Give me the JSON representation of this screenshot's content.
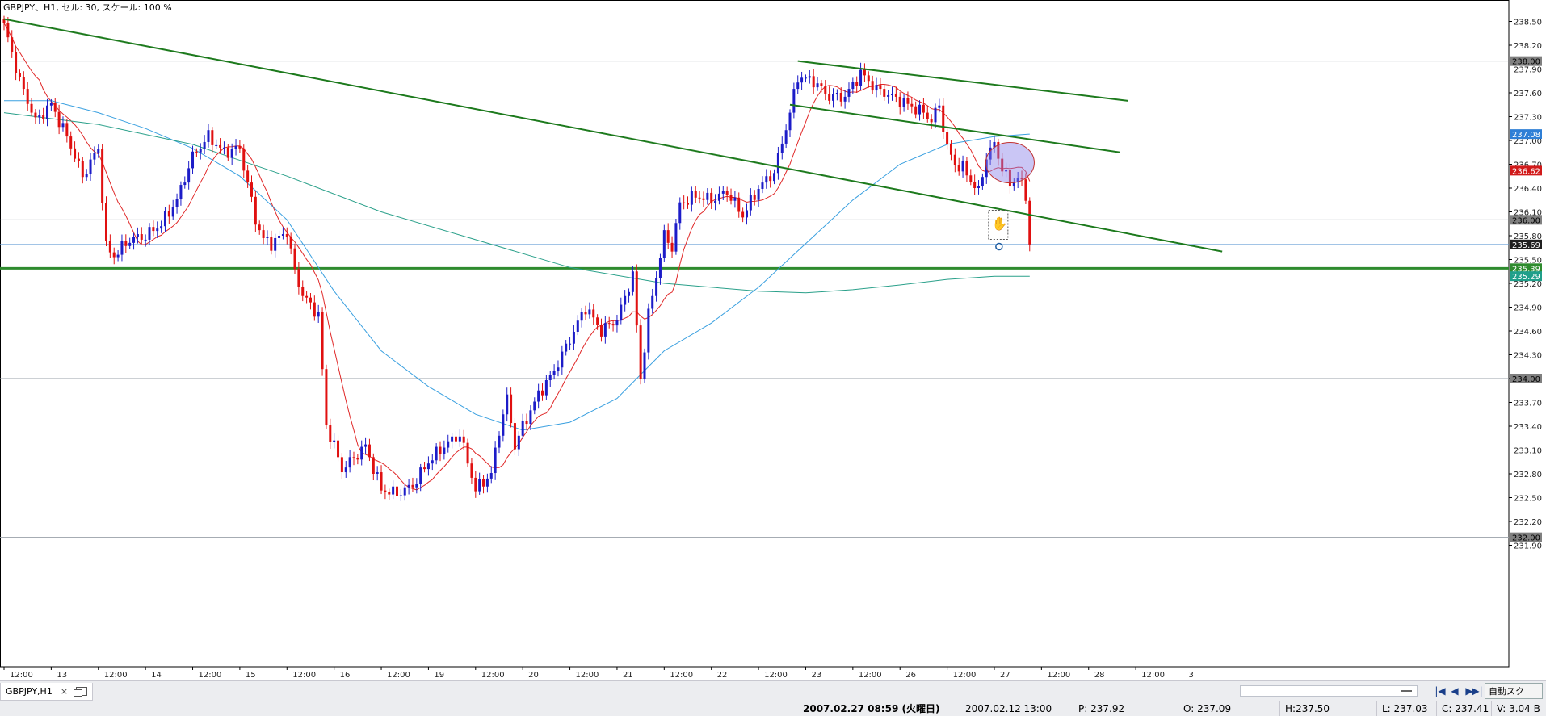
{
  "window": {
    "title_label": "GBPJPY、H1, セル: 30, スケール: 100 %"
  },
  "chart_data": {
    "type": "candlestick",
    "symbol": "GBPJPY",
    "timeframe": "H1",
    "title": "GBPJPY、H1, セル: 30, スケール: 100 %",
    "ylim": [
      232.0,
      238.6
    ],
    "y_ticks": [
      "238.50",
      "238.20",
      "237.90",
      "237.60",
      "237.30",
      "237.00",
      "236.70",
      "236.40",
      "236.10",
      "235.80",
      "235.50",
      "235.20",
      "234.90",
      "234.60",
      "234.30",
      "234.00",
      "233.70",
      "233.40",
      "233.10",
      "232.80",
      "232.50",
      "232.20",
      "231.90"
    ],
    "x_ticks": [
      {
        "label": "12:00",
        "bar": 0
      },
      {
        "label": "13",
        "bar": 12
      },
      {
        "label": "12:00",
        "bar": 24
      },
      {
        "label": "14",
        "bar": 36
      },
      {
        "label": "12:00",
        "bar": 48
      },
      {
        "label": "15",
        "bar": 60
      },
      {
        "label": "12:00",
        "bar": 72
      },
      {
        "label": "16",
        "bar": 84
      },
      {
        "label": "12:00",
        "bar": 96
      },
      {
        "label": "19",
        "bar": 108
      },
      {
        "label": "12:00",
        "bar": 120
      },
      {
        "label": "20",
        "bar": 132
      },
      {
        "label": "12:00",
        "bar": 144
      },
      {
        "label": "21",
        "bar": 156
      },
      {
        "label": "12:00",
        "bar": 168
      },
      {
        "label": "22",
        "bar": 180
      },
      {
        "label": "12:00",
        "bar": 192
      },
      {
        "label": "23",
        "bar": 204
      },
      {
        "label": "12:00",
        "bar": 216
      },
      {
        "label": "26",
        "bar": 228
      },
      {
        "label": "12:00",
        "bar": 240
      },
      {
        "label": "27",
        "bar": 252
      },
      {
        "label": "12:00",
        "bar": 264
      },
      {
        "label": "28",
        "bar": 276
      },
      {
        "label": "12:00",
        "bar": 288
      },
      {
        "label": "3",
        "bar": 300
      }
    ],
    "anchors": [
      [
        0,
        238.45
      ],
      [
        4,
        237.75
      ],
      [
        8,
        237.25
      ],
      [
        12,
        237.45
      ],
      [
        16,
        237.05
      ],
      [
        20,
        236.55
      ],
      [
        24,
        236.9
      ],
      [
        26,
        235.65
      ],
      [
        28,
        235.55
      ],
      [
        32,
        235.75
      ],
      [
        36,
        235.8
      ],
      [
        40,
        235.95
      ],
      [
        44,
        236.25
      ],
      [
        48,
        236.8
      ],
      [
        52,
        237.05
      ],
      [
        56,
        236.85
      ],
      [
        60,
        236.9
      ],
      [
        64,
        236.0
      ],
      [
        66,
        235.75
      ],
      [
        68,
        235.7
      ],
      [
        72,
        235.85
      ],
      [
        74,
        235.35
      ],
      [
        76,
        235.05
      ],
      [
        80,
        234.8
      ],
      [
        82,
        233.4
      ],
      [
        84,
        233.15
      ],
      [
        86,
        232.85
      ],
      [
        88,
        232.95
      ],
      [
        92,
        233.15
      ],
      [
        96,
        232.6
      ],
      [
        100,
        232.55
      ],
      [
        104,
        232.65
      ],
      [
        108,
        232.95
      ],
      [
        112,
        233.15
      ],
      [
        116,
        233.3
      ],
      [
        120,
        232.6
      ],
      [
        124,
        232.8
      ],
      [
        126,
        233.35
      ],
      [
        128,
        233.75
      ],
      [
        130,
        233.15
      ],
      [
        132,
        233.4
      ],
      [
        136,
        233.8
      ],
      [
        140,
        234.1
      ],
      [
        144,
        234.5
      ],
      [
        148,
        234.9
      ],
      [
        152,
        234.6
      ],
      [
        156,
        234.75
      ],
      [
        160,
        235.3
      ],
      [
        162,
        234.0
      ],
      [
        164,
        234.8
      ],
      [
        168,
        235.8
      ],
      [
        170,
        235.65
      ],
      [
        172,
        236.2
      ],
      [
        176,
        236.3
      ],
      [
        180,
        236.25
      ],
      [
        184,
        236.35
      ],
      [
        188,
        236.05
      ],
      [
        192,
        236.4
      ],
      [
        196,
        236.6
      ],
      [
        200,
        237.35
      ],
      [
        202,
        237.8
      ],
      [
        206,
        237.75
      ],
      [
        210,
        237.55
      ],
      [
        214,
        237.55
      ],
      [
        218,
        237.85
      ],
      [
        222,
        237.65
      ],
      [
        226,
        237.55
      ],
      [
        230,
        237.45
      ],
      [
        234,
        237.35
      ],
      [
        236,
        237.25
      ],
      [
        238,
        237.45
      ],
      [
        240,
        236.9
      ],
      [
        242,
        236.7
      ],
      [
        244,
        236.65
      ],
      [
        246,
        236.5
      ],
      [
        248,
        236.35
      ],
      [
        250,
        236.8
      ],
      [
        252,
        236.95
      ],
      [
        254,
        236.65
      ],
      [
        256,
        236.45
      ],
      [
        258,
        236.55
      ],
      [
        260,
        236.3
      ],
      [
        261,
        235.69
      ]
    ],
    "ma_red_period": 10,
    "ma_blue_anchors": [
      [
        0,
        237.5
      ],
      [
        12,
        237.5
      ],
      [
        24,
        237.35
      ],
      [
        36,
        237.15
      ],
      [
        48,
        236.9
      ],
      [
        60,
        236.55
      ],
      [
        72,
        236.0
      ],
      [
        84,
        235.1
      ],
      [
        96,
        234.35
      ],
      [
        108,
        233.9
      ],
      [
        120,
        233.55
      ],
      [
        132,
        233.35
      ],
      [
        144,
        233.45
      ],
      [
        156,
        233.75
      ],
      [
        168,
        234.35
      ],
      [
        180,
        234.7
      ],
      [
        192,
        235.15
      ],
      [
        204,
        235.7
      ],
      [
        216,
        236.25
      ],
      [
        228,
        236.7
      ],
      [
        240,
        236.95
      ],
      [
        252,
        237.05
      ],
      [
        261,
        237.08
      ]
    ],
    "ma_teal_anchors": [
      [
        0,
        237.35
      ],
      [
        24,
        237.2
      ],
      [
        48,
        236.95
      ],
      [
        72,
        236.55
      ],
      [
        96,
        236.1
      ],
      [
        120,
        235.75
      ],
      [
        144,
        235.4
      ],
      [
        168,
        235.2
      ],
      [
        192,
        235.1
      ],
      [
        204,
        235.08
      ],
      [
        216,
        235.12
      ],
      [
        228,
        235.18
      ],
      [
        240,
        235.25
      ],
      [
        252,
        235.29
      ],
      [
        261,
        235.29
      ]
    ],
    "hlines": [
      {
        "price": 238.0,
        "color": "#9aa0a8",
        "width": 1
      },
      {
        "price": 236.0,
        "color": "#9aa0a8",
        "width": 1
      },
      {
        "price": 235.69,
        "color": "#6aa0d8",
        "width": 1
      },
      {
        "price": 235.39,
        "color": "#2e8b2e",
        "width": 3
      },
      {
        "price": 234.0,
        "color": "#9aa0a8",
        "width": 1
      },
      {
        "price": 232.0,
        "color": "#9aa0a8",
        "width": 1
      }
    ],
    "trendlines": [
      {
        "from": [
          0,
          238.53
        ],
        "to": [
          310,
          235.6
        ],
        "color": "#1d7a1d"
      },
      {
        "from": [
          202,
          238.0
        ],
        "to": [
          286,
          237.5
        ],
        "color": "#1d7a1d"
      },
      {
        "from": [
          200,
          237.45
        ],
        "to": [
          284,
          236.85
        ],
        "color": "#1d7a1d"
      }
    ],
    "price_labels": [
      {
        "text": "238.00",
        "price": 238.0,
        "bg": "#808080",
        "fg": "#000000"
      },
      {
        "text": "237.08",
        "price": 237.08,
        "bg": "#2f7fd6",
        "fg": "#ffffff"
      },
      {
        "text": "236.62",
        "price": 236.62,
        "bg": "#d11a1a",
        "fg": "#ffffff"
      },
      {
        "text": "236.00",
        "price": 236.0,
        "bg": "#808080",
        "fg": "#000000"
      },
      {
        "text": "235.69",
        "price": 235.69,
        "bg": "#202020",
        "fg": "#ffffff"
      },
      {
        "text": "235.39",
        "price": 235.39,
        "bg": "#2e8b2e",
        "fg": "#ffffff"
      },
      {
        "text": "235.29",
        "price": 235.29,
        "bg": "#1f9f8a",
        "fg": "#ffffff"
      },
      {
        "text": "234.00",
        "price": 234.0,
        "bg": "#808080",
        "fg": "#000000"
      },
      {
        "text": "232.00",
        "price": 232.0,
        "bg": "#808080",
        "fg": "#000000"
      }
    ],
    "colors": {
      "up": "#1c1cc8",
      "down": "#e01010",
      "ma_red": "#e02828",
      "ma_blue": "#3aa0e0",
      "ma_teal": "#2aa08a",
      "grid": "#d8d8e8",
      "bg": "#ffffff",
      "highlight": "#8a80e8"
    }
  },
  "tabbar": {
    "tab_label": "GBPJPY,H1",
    "close_glyph": "×",
    "nav_glyphs": [
      "|◀",
      "◀",
      "▶",
      "▶|"
    ],
    "mode_button": "自動スク"
  },
  "status": {
    "datetime": "2007.02.27 08:59 (火曜日)",
    "bar_time": "2007.02.12 13:00",
    "price": "P: 237.92",
    "open": "O: 237.09",
    "high": "H:237.50",
    "low": "L: 237.03",
    "close": "C: 237.41",
    "volume": "V: 3.04 B"
  }
}
